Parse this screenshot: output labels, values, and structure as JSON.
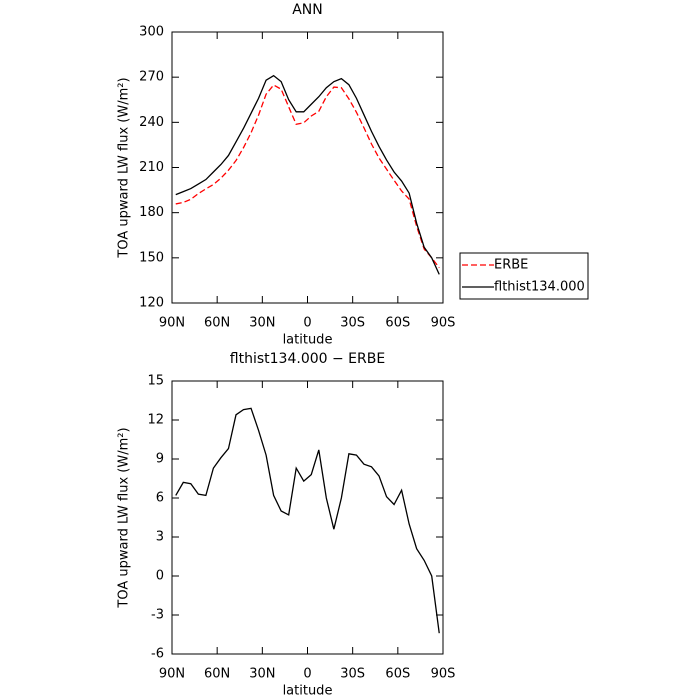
{
  "chart_data": [
    {
      "type": "line",
      "title": "ANN",
      "x_label": "latitude",
      "y_label": "TOA upward LW flux (W/m²)",
      "x": [
        87.5,
        82.5,
        77.5,
        72.5,
        67.5,
        62.5,
        57.5,
        52.5,
        47.5,
        42.5,
        37.5,
        32.5,
        27.5,
        22.5,
        17.5,
        12.5,
        7.5,
        2.5,
        -2.5,
        -7.5,
        -12.5,
        -17.5,
        -22.5,
        -27.5,
        -32.5,
        -37.5,
        -42.5,
        -47.5,
        -52.5,
        -57.5,
        -62.5,
        -67.5,
        -72.5,
        -77.5,
        -82.5,
        -87.5
      ],
      "series": [
        {
          "name": "ERBE",
          "color": "#ff0000",
          "dashed": true,
          "values": [
            185.8,
            186.8,
            188.9,
            192.7,
            195.8,
            198.7,
            202.9,
            208.2,
            214.6,
            223.2,
            233.1,
            244.8,
            258.7,
            264.8,
            262.0,
            250.3,
            238.7,
            239.7,
            244.2,
            247.3,
            257.0,
            263.4,
            263.0,
            255.6,
            246.7,
            236.4,
            225.6,
            216.3,
            208.9,
            201.5,
            194.4,
            189.0,
            170.9,
            155.8,
            150.0,
            143.4
          ]
        },
        {
          "name": "flthist134.000",
          "color": "#000000",
          "dashed": false,
          "values": [
            192,
            194,
            196,
            199,
            202,
            207,
            212,
            218,
            227,
            236,
            246,
            256,
            268,
            271,
            267,
            255,
            247,
            247,
            252,
            257,
            263,
            267,
            269,
            265,
            256,
            245,
            234,
            224,
            215,
            207,
            201,
            193,
            173,
            157,
            150,
            139
          ]
        }
      ],
      "xlim": [
        90,
        -90
      ],
      "xticks": [
        {
          "value": 90,
          "label": "90N"
        },
        {
          "value": 60,
          "label": "60N"
        },
        {
          "value": 30,
          "label": "30N"
        },
        0,
        {
          "value": -30,
          "label": "30S"
        },
        {
          "value": -60,
          "label": "60S"
        },
        {
          "value": -90,
          "label": "90S"
        }
      ],
      "ylim": [
        120,
        300
      ],
      "yticks": [
        120,
        150,
        180,
        210,
        240,
        270,
        300
      ],
      "legend": "right"
    },
    {
      "type": "line",
      "title": "flthist134.000 − ERBE",
      "x_label": "latitude",
      "y_label": "TOA upward LW flux (W/m²)",
      "x": [
        87.5,
        82.5,
        77.5,
        72.5,
        67.5,
        62.5,
        57.5,
        52.5,
        47.5,
        42.5,
        37.5,
        32.5,
        27.5,
        22.5,
        17.5,
        12.5,
        7.5,
        2.5,
        -2.5,
        -7.5,
        -12.5,
        -17.5,
        -22.5,
        -27.5,
        -32.5,
        -37.5,
        -42.5,
        -47.5,
        -52.5,
        -57.5,
        -62.5,
        -67.5,
        -72.5,
        -77.5,
        -82.5,
        -87.5
      ],
      "series": [
        {
          "color": "#000000",
          "dashed": false,
          "values": [
            6.2,
            7.2,
            7.1,
            6.3,
            6.2,
            8.3,
            9.1,
            9.8,
            12.4,
            12.8,
            12.9,
            11.2,
            9.3,
            6.2,
            5.0,
            4.7,
            8.3,
            7.3,
            7.8,
            9.7,
            6.0,
            3.6,
            6.0,
            9.4,
            9.3,
            8.6,
            8.4,
            7.7,
            6.1,
            5.5,
            6.6,
            4.0,
            2.1,
            1.2,
            0.0,
            -4.4
          ]
        }
      ],
      "xlim": [
        90,
        -90
      ],
      "xticks": [
        {
          "value": 90,
          "label": "90N"
        },
        {
          "value": 60,
          "label": "60N"
        },
        {
          "value": 30,
          "label": "30N"
        },
        0,
        {
          "value": -30,
          "label": "30S"
        },
        {
          "value": -60,
          "label": "60S"
        },
        {
          "value": -90,
          "label": "90S"
        }
      ],
      "ylim": [
        -6,
        15
      ],
      "yticks": [
        -6,
        -3,
        0,
        3,
        6,
        9,
        12,
        15
      ]
    }
  ]
}
